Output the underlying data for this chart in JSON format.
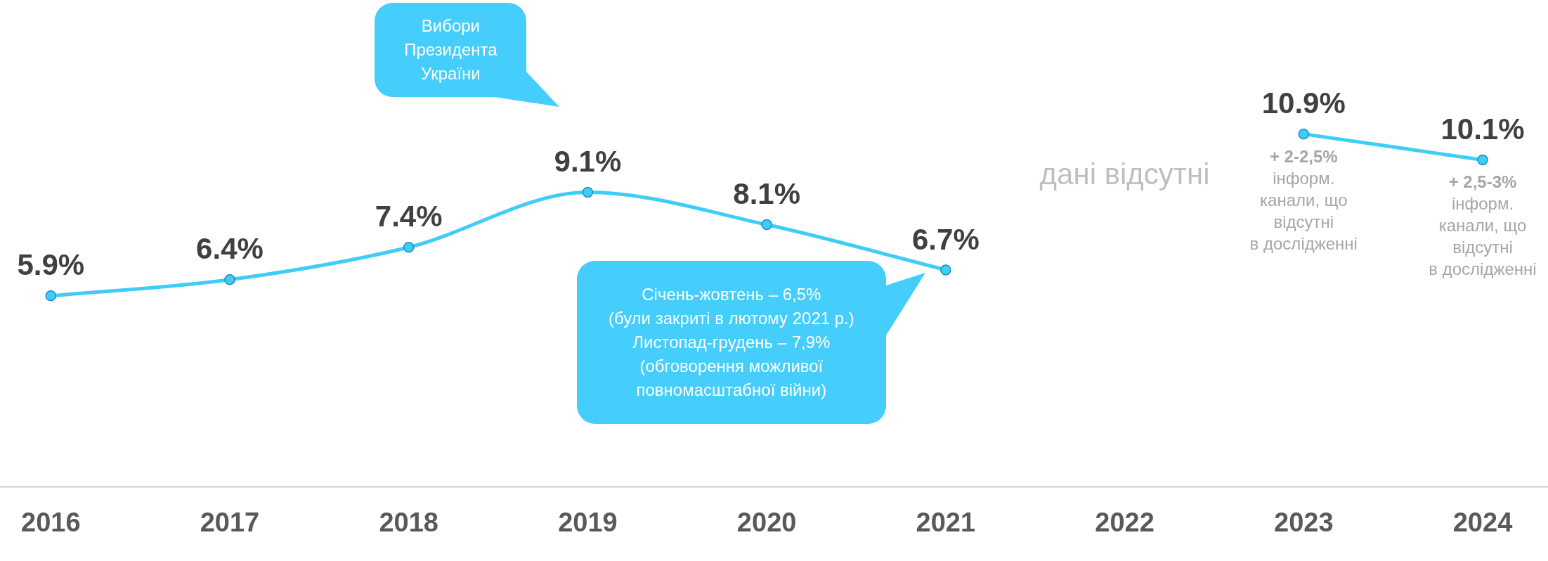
{
  "chart_data": {
    "type": "line",
    "categories": [
      "2016",
      "2017",
      "2018",
      "2019",
      "2020",
      "2021",
      "2022",
      "2023",
      "2024"
    ],
    "series": [
      {
        "color": "#3fcdf7",
        "values": [
          5.9,
          6.4,
          7.4,
          9.1,
          8.1,
          6.7,
          null,
          10.9,
          10.1
        ],
        "value_labels": [
          "5.9%",
          "6.4%",
          "7.4%",
          "9.1%",
          "8.1%",
          "6.7%",
          null,
          "10.9%",
          "10.1%"
        ]
      }
    ],
    "tick_labels": "x",
    "grid": false,
    "legend": false,
    "marker": "circle",
    "line_style": "solid",
    "annotations": [
      "Вибори\nПрезидента\nУкраїни",
      "Січень-жовтень – 6,5%\n(були закриті в лютому 2021 р.)\nЛистопад-грудень – 7,9%\n(обговорення можливої\nповномасштабної війни)",
      "дані відсутні",
      "+ 2-2,5%\nінформ.\nканали, що\nвідсутні\nв дослідженні",
      "+ 2,5-3%\nінформ.\nканали, що\nвідсутні\nв дослідженні"
    ]
  }
}
